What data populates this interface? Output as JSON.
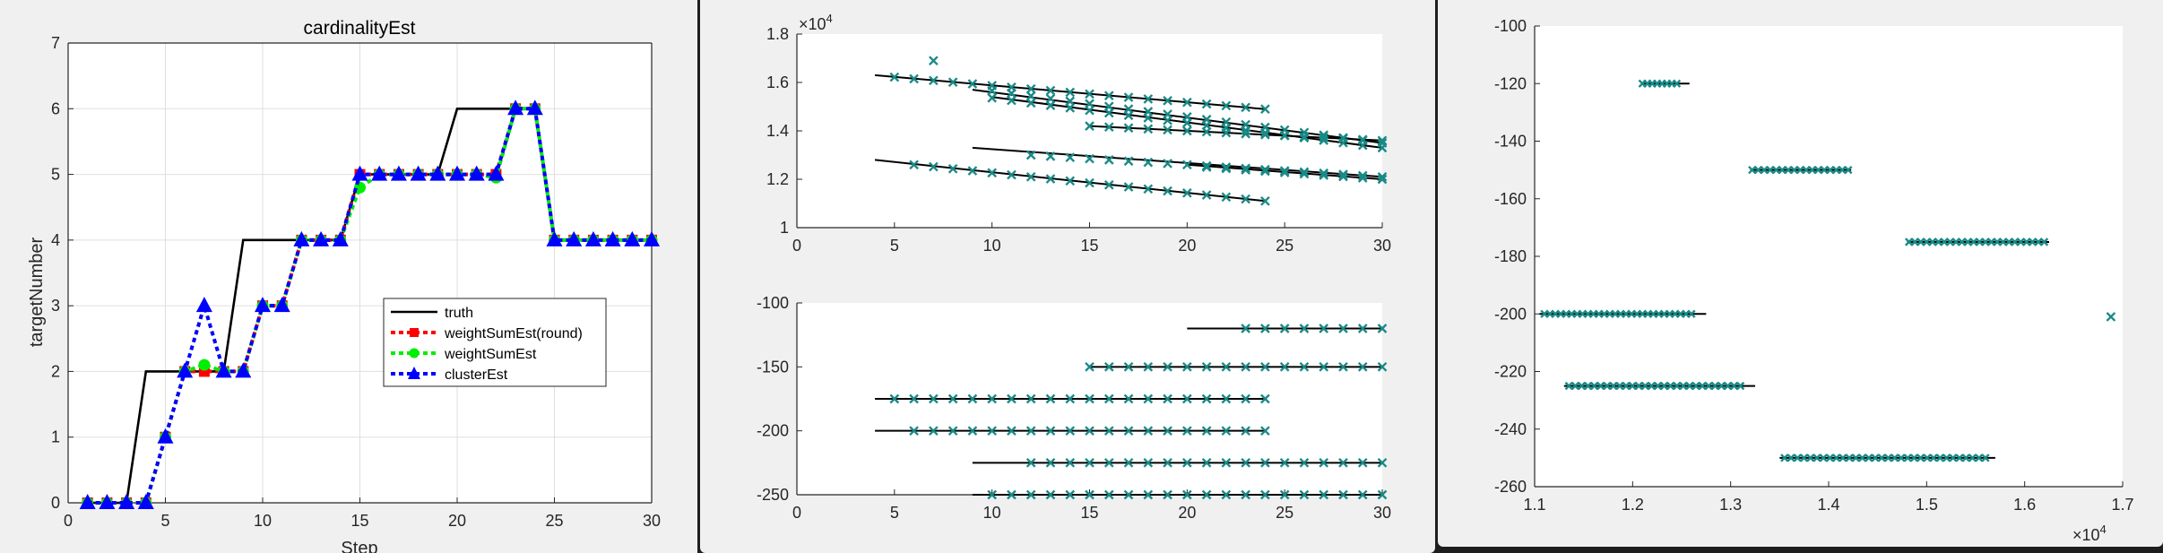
{
  "chart_data": [
    {
      "type": "line",
      "title": "cardinalityEst",
      "xlabel": "Step",
      "ylabel": "targetNumber",
      "xlim": [
        0,
        30
      ],
      "ylim": [
        0,
        7
      ],
      "xticks": [
        "0",
        "5",
        "10",
        "15",
        "20",
        "25",
        "30"
      ],
      "yticks": [
        "0",
        "1",
        "2",
        "3",
        "4",
        "5",
        "6",
        "7"
      ],
      "grid": true,
      "legend_position": "center-right",
      "series": [
        {
          "name": "truth",
          "color": "#000000",
          "style": "step",
          "x": [
            1,
            2,
            3,
            4,
            5,
            6,
            7,
            8,
            9,
            10,
            11,
            12,
            13,
            14,
            15,
            16,
            17,
            18,
            19,
            20,
            21,
            22,
            23,
            24,
            25,
            26,
            27,
            28,
            29,
            30
          ],
          "values": [
            0,
            0,
            0,
            2,
            2,
            2,
            2,
            2,
            4,
            4,
            4,
            4,
            4,
            4,
            5,
            5,
            5,
            5,
            5,
            6,
            6,
            6,
            6,
            6,
            4,
            4,
            4,
            4,
            4,
            4
          ]
        },
        {
          "name": "weightSumEst(round)",
          "color": "#ff0000",
          "marker": "square",
          "x": [
            1,
            2,
            3,
            4,
            5,
            6,
            7,
            8,
            9,
            10,
            11,
            12,
            13,
            14,
            15,
            16,
            17,
            18,
            19,
            20,
            21,
            22,
            23,
            24,
            25,
            26,
            27,
            28,
            29,
            30
          ],
          "values": [
            0,
            0,
            0,
            0,
            1,
            2,
            2,
            2,
            2,
            3,
            3,
            4,
            4,
            4,
            5,
            5,
            5,
            5,
            5,
            5,
            5,
            5,
            6,
            6,
            4,
            4,
            4,
            4,
            4,
            4
          ]
        },
        {
          "name": "weightSumEst",
          "color": "#00ee00",
          "marker": "circle",
          "x": [
            1,
            2,
            3,
            4,
            5,
            6,
            7,
            8,
            9,
            10,
            11,
            12,
            13,
            14,
            15,
            16,
            17,
            18,
            19,
            20,
            21,
            22,
            23,
            24,
            25,
            26,
            27,
            28,
            29,
            30
          ],
          "values": [
            0,
            0,
            0,
            0,
            1,
            2,
            2.1,
            2,
            2,
            3,
            3,
            4,
            4,
            4,
            4.8,
            5,
            5,
            5,
            5,
            5,
            5,
            4.95,
            6,
            6,
            4,
            4,
            4,
            4,
            4,
            4
          ]
        },
        {
          "name": "clusterEst",
          "color": "#0000ff",
          "marker": "triangle",
          "x": [
            1,
            2,
            3,
            4,
            5,
            6,
            7,
            8,
            9,
            10,
            11,
            12,
            13,
            14,
            15,
            16,
            17,
            18,
            19,
            20,
            21,
            22,
            23,
            24,
            25,
            26,
            27,
            28,
            29,
            30
          ],
          "values": [
            0,
            0,
            0,
            0,
            1,
            2,
            3,
            2,
            2,
            3,
            3,
            4,
            4,
            4,
            5,
            5,
            5,
            5,
            5,
            5,
            5,
            5,
            6,
            6,
            4,
            4,
            4,
            4,
            4,
            4
          ]
        }
      ]
    },
    {
      "type": "scatter",
      "xlim": [
        0,
        30
      ],
      "ylim": [
        1,
        1.8
      ],
      "exponent_label": "10",
      "exponent_power": "4",
      "xticks": [
        "0",
        "5",
        "10",
        "15",
        "20",
        "25",
        "30"
      ],
      "yticks": [
        "1",
        "1.2",
        "1.4",
        "1.6",
        "1.8"
      ],
      "lines": [
        {
          "x": [
            4,
            24
          ],
          "y": [
            1.63,
            1.49
          ]
        },
        {
          "x": [
            9,
            30
          ],
          "y": [
            1.57,
            1.35
          ]
        },
        {
          "x": [
            10,
            30
          ],
          "y": [
            1.54,
            1.33
          ]
        },
        {
          "x": [
            15,
            30
          ],
          "y": [
            1.42,
            1.36
          ]
        },
        {
          "x": [
            9,
            30
          ],
          "y": [
            1.33,
            1.21
          ]
        },
        {
          "x": [
            20,
            30
          ],
          "y": [
            1.26,
            1.2
          ]
        },
        {
          "x": [
            4,
            24
          ],
          "y": [
            1.28,
            1.11
          ]
        }
      ],
      "markers": [
        {
          "x_start": 5,
          "x_end": 24,
          "y_start": 1.622,
          "y_end": 1.49
        },
        {
          "x_start": 10,
          "x_end": 30,
          "y_start": 1.566,
          "y_end": 1.35
        },
        {
          "x_start": 10,
          "x_end": 30,
          "y_start": 1.536,
          "y_end": 1.33
        },
        {
          "x_start": 15,
          "x_end": 30,
          "y_start": 1.42,
          "y_end": 1.36
        },
        {
          "x_start": 12,
          "x_end": 30,
          "y_start": 1.3,
          "y_end": 1.21
        },
        {
          "x_start": 21,
          "x_end": 30,
          "y_start": 1.25,
          "y_end": 1.2
        },
        {
          "x_start": 6,
          "x_end": 24,
          "y_start": 1.26,
          "y_end": 1.11
        }
      ],
      "outliers": [
        {
          "x": 7,
          "y": 1.69
        }
      ]
    },
    {
      "type": "scatter",
      "xlim": [
        0,
        30
      ],
      "ylim": [
        -250,
        -100
      ],
      "xticks": [
        "0",
        "5",
        "10",
        "15",
        "20",
        "25",
        "30"
      ],
      "yticks": [
        "-100",
        "-150",
        "-200",
        "-250"
      ],
      "lines": [
        {
          "x": [
            4,
            24
          ],
          "y": [
            -175,
            -175
          ]
        },
        {
          "x": [
            4,
            24
          ],
          "y": [
            -200,
            -200
          ]
        },
        {
          "x": [
            9,
            30
          ],
          "y": [
            -225,
            -225
          ]
        },
        {
          "x": [
            9,
            30
          ],
          "y": [
            -250,
            -250
          ]
        },
        {
          "x": [
            15,
            30
          ],
          "y": [
            -150,
            -150
          ]
        },
        {
          "x": [
            20,
            30
          ],
          "y": [
            -120,
            -120
          ]
        }
      ],
      "markers": [
        {
          "x_start": 5,
          "x_end": 24,
          "y": -175
        },
        {
          "x_start": 6,
          "x_end": 24,
          "y": -200
        },
        {
          "x_start": 12,
          "x_end": 30,
          "y": -225
        },
        {
          "x_start": 10,
          "x_end": 30,
          "y": -250
        },
        {
          "x_start": 15,
          "x_end": 30,
          "y": -150
        },
        {
          "x_start": 23,
          "x_end": 30,
          "y": -120
        }
      ]
    },
    {
      "type": "scatter",
      "xlim": [
        1.1,
        1.7
      ],
      "ylim": [
        -260,
        -100
      ],
      "exponent_label": "10",
      "exponent_power": "4",
      "xticks": [
        "1.1",
        "1.2",
        "1.3",
        "1.4",
        "1.5",
        "1.6",
        "1.7"
      ],
      "yticks": [
        "-100",
        "-120",
        "-140",
        "-160",
        "-180",
        "-200",
        "-220",
        "-240",
        "-260"
      ],
      "lines": [
        {
          "x": [
            1.21,
            1.258
          ],
          "y": [
            -120,
            -120
          ]
        },
        {
          "x": [
            1.32,
            1.423
          ],
          "y": [
            -150,
            -150
          ]
        },
        {
          "x": [
            1.48,
            1.625
          ],
          "y": [
            -175,
            -175
          ]
        },
        {
          "x": [
            1.105,
            1.275
          ],
          "y": [
            -200,
            -200
          ]
        },
        {
          "x": [
            1.13,
            1.325
          ],
          "y": [
            -225,
            -225
          ]
        },
        {
          "x": [
            1.35,
            1.57
          ],
          "y": [
            -250,
            -250
          ]
        }
      ],
      "markers": [
        {
          "x_start": 1.21,
          "x_end": 1.245,
          "y": -120,
          "count": 8
        },
        {
          "x_start": 1.322,
          "x_end": 1.42,
          "y": -150,
          "count": 17
        },
        {
          "x_start": 1.482,
          "x_end": 1.62,
          "y": -175,
          "count": 24
        },
        {
          "x_start": 1.11,
          "x_end": 1.26,
          "y": -200,
          "count": 28
        },
        {
          "x_start": 1.135,
          "x_end": 1.31,
          "y": -225,
          "count": 28
        },
        {
          "x_start": 1.355,
          "x_end": 1.56,
          "y": -250,
          "count": 32
        }
      ],
      "outliers": [
        {
          "x": 1.688,
          "y": -201
        }
      ]
    }
  ]
}
